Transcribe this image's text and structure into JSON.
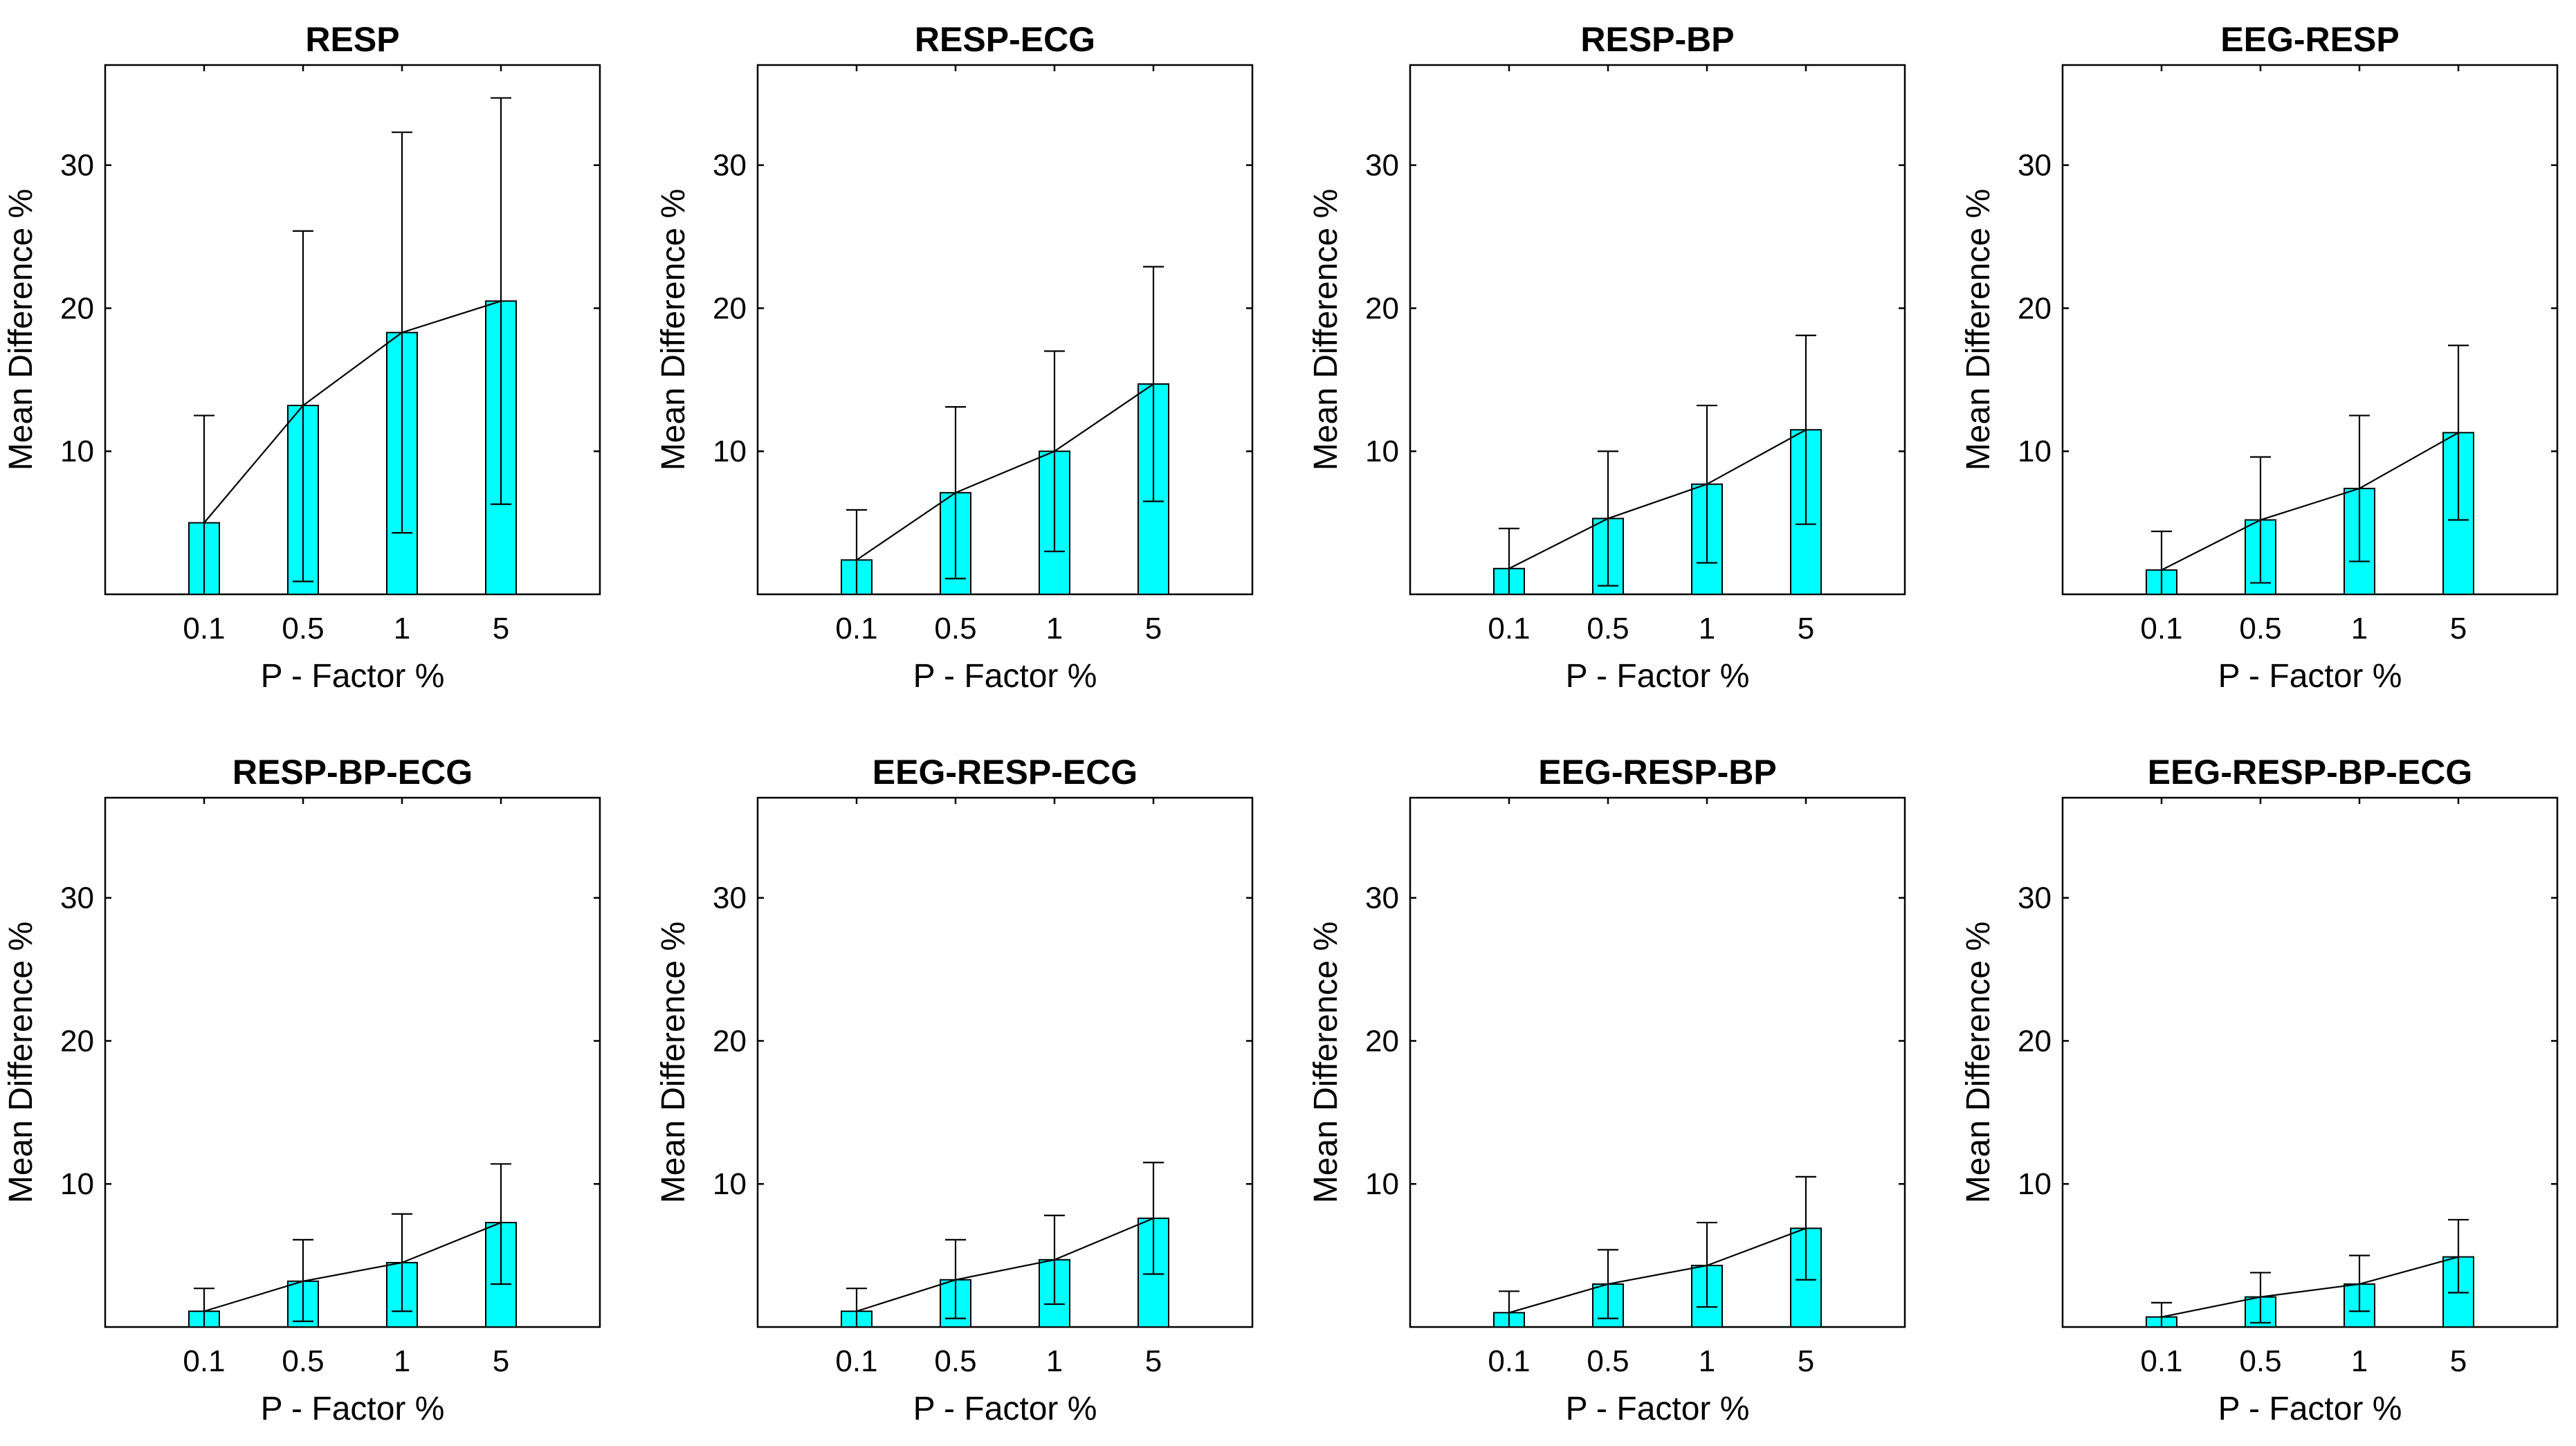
{
  "colors": {
    "bar_fill": "#00ffff",
    "bar_stroke": "#000000",
    "line": "#000000",
    "axes": "#000000",
    "background": "#ffffff"
  },
  "chart_data": [
    {
      "type": "bar",
      "title": "RESP",
      "xlabel": "P - Factor %",
      "ylabel": "Mean Difference %",
      "categories": [
        "0.1",
        "0.5",
        "1",
        "5"
      ],
      "values": [
        5.0,
        13.2,
        18.3,
        20.5
      ],
      "error_low": [
        0.0,
        0.9,
        4.3,
        6.3
      ],
      "error_high": [
        12.5,
        25.4,
        32.3,
        34.7
      ],
      "ylim": [
        0,
        37
      ],
      "yticks": [
        10,
        20,
        30
      ],
      "overlay_line": true,
      "grid": false
    },
    {
      "type": "bar",
      "title": "RESP-ECG",
      "xlabel": "P - Factor %",
      "ylabel": "Mean Difference %",
      "categories": [
        "0.1",
        "0.5",
        "1",
        "5"
      ],
      "values": [
        2.4,
        7.1,
        10.0,
        14.7
      ],
      "error_low": [
        0.0,
        1.1,
        3.0,
        6.5
      ],
      "error_high": [
        5.9,
        13.1,
        17.0,
        22.9
      ],
      "ylim": [
        0,
        37
      ],
      "yticks": [
        10,
        20,
        30
      ],
      "overlay_line": true,
      "grid": false
    },
    {
      "type": "bar",
      "title": "RESP-BP",
      "xlabel": "P - Factor %",
      "ylabel": "Mean Difference %",
      "categories": [
        "0.1",
        "0.5",
        "1",
        "5"
      ],
      "values": [
        1.8,
        5.3,
        7.7,
        11.5
      ],
      "error_low": [
        0.0,
        0.6,
        2.2,
        4.9
      ],
      "error_high": [
        4.6,
        10.0,
        13.2,
        18.1
      ],
      "ylim": [
        0,
        37
      ],
      "yticks": [
        10,
        20,
        30
      ],
      "overlay_line": true,
      "grid": false
    },
    {
      "type": "bar",
      "title": "EEG-RESP",
      "xlabel": "P - Factor %",
      "ylabel": "Mean Difference %",
      "categories": [
        "0.1",
        "0.5",
        "1",
        "5"
      ],
      "values": [
        1.7,
        5.2,
        7.4,
        11.3
      ],
      "error_low": [
        0.0,
        0.8,
        2.3,
        5.2
      ],
      "error_high": [
        4.4,
        9.6,
        12.5,
        17.4
      ],
      "ylim": [
        0,
        37
      ],
      "yticks": [
        10,
        20,
        30
      ],
      "overlay_line": true,
      "grid": false
    },
    {
      "type": "bar",
      "title": "RESP-BP-ECG",
      "xlabel": "P - Factor %",
      "ylabel": "Mean Difference %",
      "categories": [
        "0.1",
        "0.5",
        "1",
        "5"
      ],
      "values": [
        1.1,
        3.2,
        4.5,
        7.3
      ],
      "error_low": [
        0.0,
        0.4,
        1.1,
        3.0
      ],
      "error_high": [
        2.7,
        6.1,
        7.9,
        11.4
      ],
      "ylim": [
        0,
        37
      ],
      "yticks": [
        10,
        20,
        30
      ],
      "overlay_line": true,
      "grid": false
    },
    {
      "type": "bar",
      "title": "EEG-RESP-ECG",
      "xlabel": "P - Factor %",
      "ylabel": "Mean Difference %",
      "categories": [
        "0.1",
        "0.5",
        "1",
        "5"
      ],
      "values": [
        1.1,
        3.3,
        4.7,
        7.6
      ],
      "error_low": [
        0.0,
        0.6,
        1.6,
        3.7
      ],
      "error_high": [
        2.7,
        6.1,
        7.8,
        11.5
      ],
      "ylim": [
        0,
        37
      ],
      "yticks": [
        10,
        20,
        30
      ],
      "overlay_line": true,
      "grid": false
    },
    {
      "type": "bar",
      "title": "EEG-RESP-BP",
      "xlabel": "P - Factor %",
      "ylabel": "Mean Difference %",
      "categories": [
        "0.1",
        "0.5",
        "1",
        "5"
      ],
      "values": [
        1.0,
        3.0,
        4.3,
        6.9
      ],
      "error_low": [
        0.0,
        0.6,
        1.4,
        3.3
      ],
      "error_high": [
        2.5,
        5.4,
        7.3,
        10.5
      ],
      "ylim": [
        0,
        37
      ],
      "yticks": [
        10,
        20,
        30
      ],
      "overlay_line": true,
      "grid": false
    },
    {
      "type": "bar",
      "title": "EEG-RESP-BP-ECG",
      "xlabel": "P - Factor %",
      "ylabel": "Mean Difference %",
      "categories": [
        "0.1",
        "0.5",
        "1",
        "5"
      ],
      "values": [
        0.7,
        2.1,
        3.0,
        4.9
      ],
      "error_low": [
        0.0,
        0.3,
        1.1,
        2.4
      ],
      "error_high": [
        1.7,
        3.8,
        5.0,
        7.5
      ],
      "ylim": [
        0,
        37
      ],
      "yticks": [
        10,
        20,
        30
      ],
      "overlay_line": true,
      "grid": false
    }
  ]
}
